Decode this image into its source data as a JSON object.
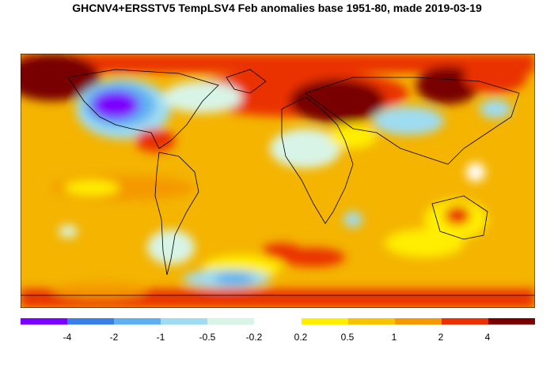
{
  "title": "GHCNV4+ERSSTV5 TempLSV4 Feb anomalies base 1951-80, made 2019-03-19",
  "colors": {
    "background_anomaly": "#f4b400",
    "palette": [
      "#7b00ff",
      "#3a7fe8",
      "#5fb0f0",
      "#9fdcf2",
      "#d8f4e6",
      "#ffffff",
      "#ffee00",
      "#f8c300",
      "#f49900",
      "#ea3000",
      "#780000"
    ]
  },
  "legend": {
    "breaks": [
      "-4",
      "-2",
      "-1",
      "-0.5",
      "-0.2",
      "0.2",
      "0.5",
      "1",
      "2",
      "4"
    ]
  }
}
